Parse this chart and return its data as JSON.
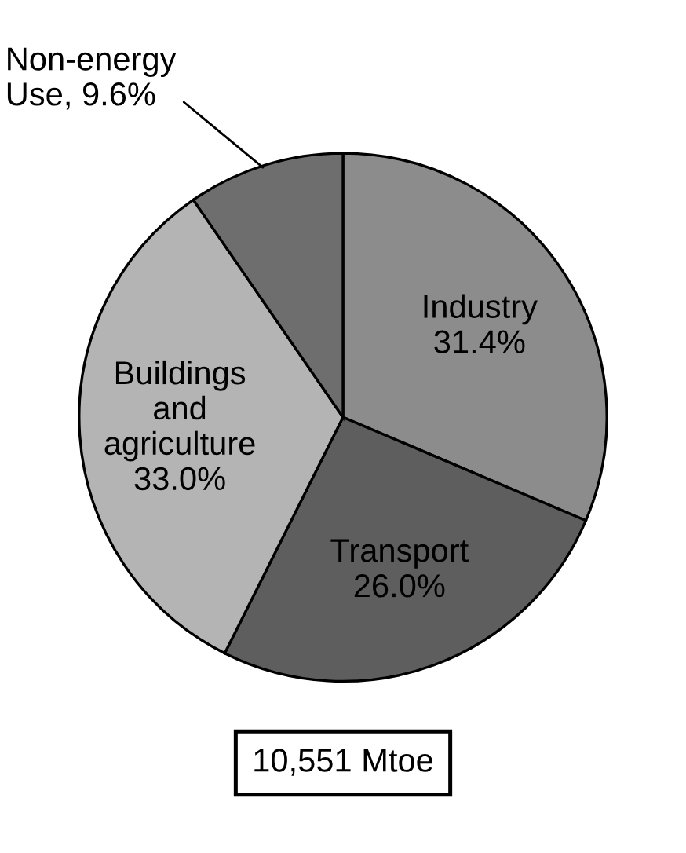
{
  "chart_data": {
    "type": "pie",
    "categories": [
      "Industry",
      "Transport",
      "Buildings\nand\nagriculture",
      "Non-energy\nUse"
    ],
    "values": [
      31.4,
      26.0,
      33.0,
      9.6
    ],
    "value_labels": [
      "31.4%",
      "26.0%",
      "33.0%",
      "9.6%"
    ],
    "colors": [
      "#8c8c8c",
      "#5e5e5e",
      "#b4b4b4",
      "#6e6e6e"
    ],
    "annotations": [
      "10,551 Mtoe"
    ]
  }
}
